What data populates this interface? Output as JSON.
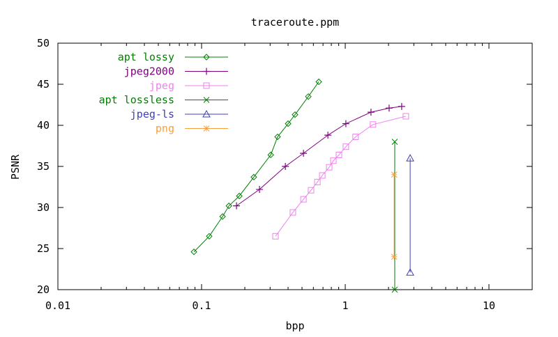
{
  "chart_data": {
    "type": "line",
    "title": "traceroute.ppm",
    "xlabel": "bpp",
    "ylabel": "PSNR",
    "xscale": "log",
    "xlim": [
      0.01,
      20
    ],
    "ylim": [
      20,
      50
    ],
    "xticks": [
      {
        "value": 0.01,
        "label": "0.01"
      },
      {
        "value": 0.1,
        "label": "0.1"
      },
      {
        "value": 1,
        "label": "1"
      },
      {
        "value": 10,
        "label": "10"
      }
    ],
    "yticks": [
      20,
      25,
      30,
      35,
      40,
      45,
      50
    ],
    "grid": false,
    "legend_position": "top-left",
    "series": [
      {
        "name": "apt lossy",
        "color": "#008000",
        "marker": "diamond",
        "points": [
          [
            0.0885,
            24.6
          ],
          [
            0.113,
            26.5
          ],
          [
            0.14,
            28.9
          ],
          [
            0.155,
            30.2
          ],
          [
            0.183,
            31.4
          ],
          [
            0.231,
            33.7
          ],
          [
            0.303,
            36.4
          ],
          [
            0.338,
            38.6
          ],
          [
            0.4,
            40.2
          ],
          [
            0.447,
            41.3
          ],
          [
            0.553,
            43.5
          ],
          [
            0.654,
            45.3
          ]
        ]
      },
      {
        "name": "jpeg2000",
        "color": "#800080",
        "marker": "plus",
        "points": [
          [
            0.175,
            30.2
          ],
          [
            0.253,
            32.2
          ],
          [
            0.383,
            35.0
          ],
          [
            0.512,
            36.6
          ],
          [
            0.757,
            38.8
          ],
          [
            1.01,
            40.2
          ],
          [
            1.51,
            41.6
          ],
          [
            2.02,
            42.1
          ],
          [
            2.47,
            42.3
          ]
        ]
      },
      {
        "name": "jpeg",
        "color": "#ee82ee",
        "marker": "square",
        "points": [
          [
            0.327,
            26.5
          ],
          [
            0.432,
            29.4
          ],
          [
            0.512,
            31.0
          ],
          [
            0.578,
            32.1
          ],
          [
            0.64,
            33.1
          ],
          [
            0.692,
            33.9
          ],
          [
            0.773,
            34.9
          ],
          [
            0.827,
            35.7
          ],
          [
            0.904,
            36.4
          ],
          [
            1.01,
            37.4
          ],
          [
            1.18,
            38.6
          ],
          [
            1.56,
            40.1
          ],
          [
            2.64,
            41.1
          ]
        ]
      },
      {
        "name": "apt lossless",
        "color": "#008000",
        "marker": "cross",
        "points": [
          [
            2.21,
            38.0
          ],
          [
            2.21,
            20.0
          ]
        ]
      },
      {
        "name": "jpeg-ls",
        "color": "#4040b0",
        "marker": "triangle",
        "points": [
          [
            2.83,
            36.0
          ],
          [
            2.83,
            22.1
          ]
        ]
      },
      {
        "name": "png",
        "color": "#f4a040",
        "marker": "star",
        "points": [
          [
            2.19,
            34.0
          ],
          [
            2.19,
            24.0
          ]
        ]
      }
    ]
  }
}
